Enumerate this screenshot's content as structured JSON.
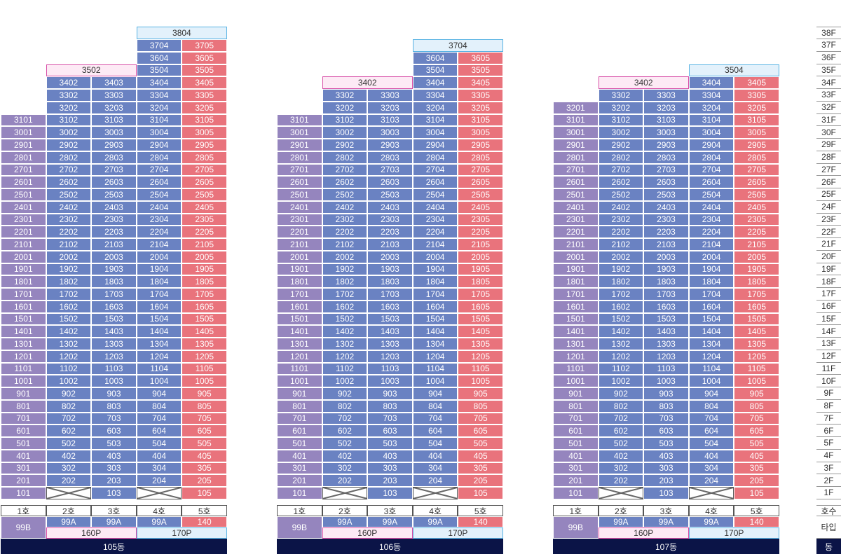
{
  "colors": {
    "type_99b": "#9585be",
    "type_99a": "#6a82c2",
    "type_140": "#e9737c",
    "penthouse_160p": "#fdeaf5",
    "penthouse_170p": "#e3f1fb",
    "building_bar": "#0b1447"
  },
  "icons": {
    "non_residential_unit": "crossed-box-icon"
  },
  "floor_axis": {
    "floors": [
      "38F",
      "37F",
      "36F",
      "35F",
      "34F",
      "33F",
      "32F",
      "31F",
      "30F",
      "29F",
      "28F",
      "27F",
      "26F",
      "25F",
      "24F",
      "23F",
      "22F",
      "21F",
      "20F",
      "19F",
      "18F",
      "17F",
      "16F",
      "15F",
      "14F",
      "13F",
      "12F",
      "11F",
      "10F",
      "9F",
      "8F",
      "7F",
      "6F",
      "5F",
      "4F",
      "3F",
      "2F",
      "1F"
    ],
    "hosu_label": "호수",
    "type_label": "타입",
    "dong_label": "동"
  },
  "buildings": [
    {
      "name": "105동",
      "line_labels": [
        "1호",
        "2호",
        "3호",
        "4호",
        "5호"
      ],
      "types": [
        "99B",
        "99A",
        "99A",
        "99A",
        "140"
      ],
      "penthouse_types": [
        "160P",
        "170P"
      ],
      "line1": {
        "top": 31,
        "blank1": false
      },
      "line2": {
        "top": 34,
        "blank1": true
      },
      "line3": {
        "top": 34,
        "blank1": false
      },
      "line4": {
        "top": 37,
        "blank1": true
      },
      "line5": {
        "top": 37,
        "blank1": false
      },
      "pink_span": {
        "floor": 35,
        "label": "3502"
      },
      "cyan_span": {
        "floor": 38,
        "label": "3804"
      }
    },
    {
      "name": "106동",
      "line_labels": [
        "1호",
        "2호",
        "3호",
        "4호",
        "5호"
      ],
      "types": [
        "99B",
        "99A",
        "99A",
        "99A",
        "140"
      ],
      "penthouse_types": [
        "160P",
        "170P"
      ],
      "line1": {
        "top": 31,
        "blank1": false
      },
      "line2": {
        "top": 33,
        "blank1": true
      },
      "line3": {
        "top": 33,
        "blank1": false
      },
      "line4": {
        "top": 36,
        "blank1": true
      },
      "line5": {
        "top": 36,
        "blank1": false
      },
      "pink_span": {
        "floor": 34,
        "label": "3402"
      },
      "cyan_span": {
        "floor": 37,
        "label": "3704"
      }
    },
    {
      "name": "107동",
      "line_labels": [
        "1호",
        "2호",
        "3호",
        "4호",
        "5호"
      ],
      "types": [
        "99B",
        "99A",
        "99A",
        "99A",
        "140"
      ],
      "penthouse_types": [
        "160P",
        "170P"
      ],
      "line1": {
        "top": 32,
        "blank1": false
      },
      "line2": {
        "top": 33,
        "blank1": true
      },
      "line3": {
        "top": 33,
        "blank1": false
      },
      "line4": {
        "top": 34,
        "blank1": true
      },
      "line5": {
        "top": 34,
        "blank1": false
      },
      "pink_span": {
        "floor": 34,
        "label": "3402"
      },
      "cyan_span": {
        "floor": 35,
        "label": "3504"
      }
    }
  ]
}
